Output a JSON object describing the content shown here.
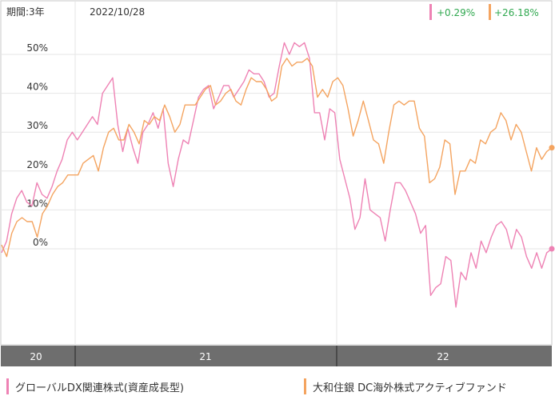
{
  "header": {
    "period_label": "期間:3年",
    "date_label": "2022/10/28"
  },
  "chart_data": {
    "type": "line",
    "yticks": [
      "50%",
      "40%",
      "30%",
      "20%",
      "10%",
      "0%"
    ],
    "ytick_values": [
      50,
      40,
      30,
      20,
      10,
      0
    ],
    "ylim": [
      -25,
      56
    ],
    "xticks": [
      "20",
      "21",
      "22"
    ],
    "grid": true,
    "series": [
      {
        "name": "グローバルDX関連株式(資産成長型)",
        "color": "#ee82b4",
        "end_label": "+0.29%",
        "values": [
          -1,
          2,
          9,
          13,
          15,
          12,
          11,
          17,
          14,
          13,
          16,
          20,
          23,
          28,
          30,
          28,
          30,
          32,
          34,
          32,
          40,
          42,
          44,
          32,
          25,
          31,
          26,
          22,
          30,
          32,
          35,
          31,
          36,
          22,
          16,
          23,
          28,
          27,
          33,
          39,
          41,
          42,
          36,
          39,
          42,
          42,
          39,
          41,
          43,
          46,
          45,
          45,
          43,
          39,
          40,
          47,
          53,
          50,
          53,
          52,
          53,
          49,
          35,
          35,
          28,
          36,
          35,
          23,
          18,
          13,
          5,
          8,
          18,
          10,
          9,
          8,
          2,
          10,
          17,
          17,
          15,
          12,
          9,
          4,
          6,
          -12,
          -10,
          -9,
          -2,
          -3,
          -15,
          -6,
          -8,
          -1,
          -5,
          2,
          -1,
          3,
          6,
          7,
          5,
          0,
          5,
          3,
          -2,
          -5,
          -1,
          -5,
          -1,
          0
        ]
      },
      {
        "name": "大和住銀 DC海外株式アクティブファンド",
        "color": "#f4a460",
        "end_label": "+26.18%",
        "values": [
          1,
          -2,
          4,
          7,
          8,
          7,
          7,
          3,
          9,
          11,
          14,
          16,
          17,
          19,
          19,
          19,
          22,
          23,
          24,
          20,
          26,
          30,
          31,
          28,
          28,
          32,
          30,
          27,
          33,
          32,
          34,
          33,
          37,
          34,
          30,
          32,
          37,
          37,
          37,
          39,
          41,
          42,
          37,
          38,
          40,
          41,
          38,
          37,
          41,
          44,
          43,
          43,
          41,
          38,
          39,
          47,
          49,
          47,
          48,
          48,
          49,
          47,
          39,
          41,
          39,
          43,
          44,
          42,
          36,
          29,
          33,
          38,
          33,
          28,
          27,
          22,
          30,
          37,
          38,
          37,
          38,
          38,
          31,
          29,
          17,
          18,
          21,
          28,
          27,
          14,
          20,
          20,
          23,
          22,
          28,
          27,
          30,
          31,
          35,
          33,
          28,
          32,
          30,
          25,
          20,
          26,
          23,
          25,
          26
        ]
      }
    ]
  },
  "legend": [
    {
      "label": "グローバルDX関連株式(資産成長型)",
      "color": "#ee82b4"
    },
    {
      "label": "大和住銀 DC海外株式アクティブファンド",
      "color": "#f4a460"
    }
  ]
}
